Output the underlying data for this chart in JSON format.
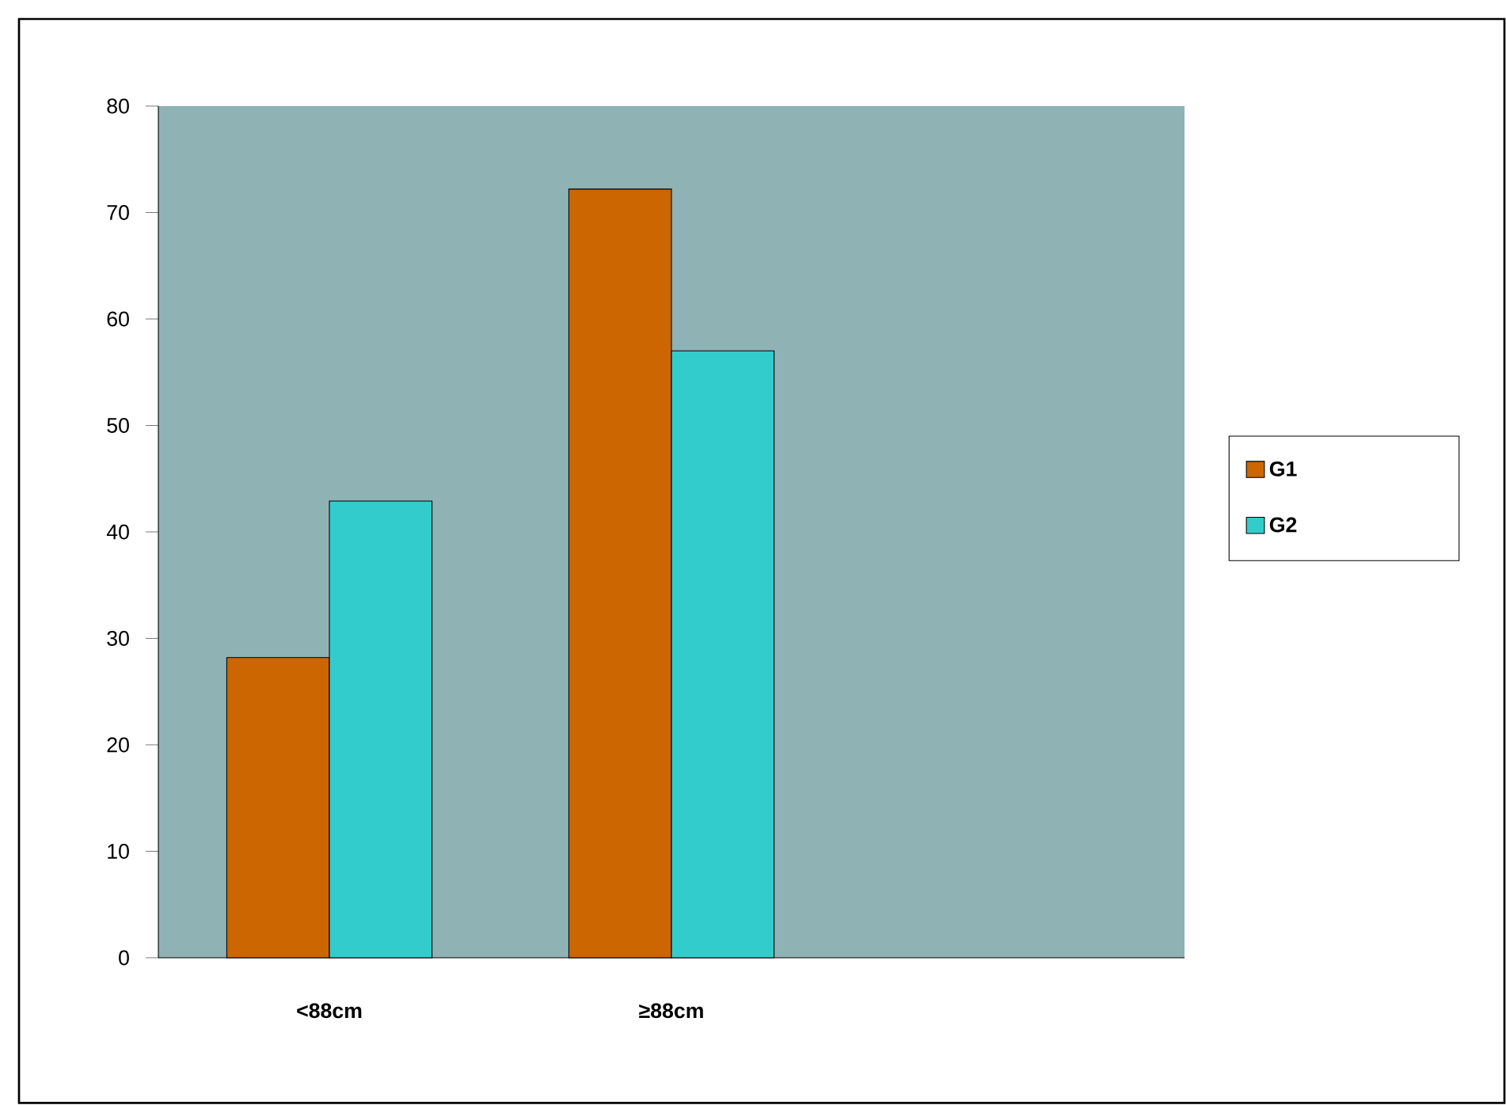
{
  "chart_data": {
    "type": "bar",
    "categories": [
      "<88cm",
      "≥88cm",
      null
    ],
    "series": [
      {
        "name": "G1",
        "color": "#cc6600",
        "values": [
          28.2,
          72.2,
          null
        ]
      },
      {
        "name": "G2",
        "color": "#33cccc",
        "values": [
          42.9,
          57.0,
          null
        ]
      }
    ],
    "ylim": [
      0,
      80
    ],
    "yticks": [
      0,
      10,
      20,
      30,
      40,
      50,
      60,
      70,
      80
    ],
    "legend": "right"
  }
}
